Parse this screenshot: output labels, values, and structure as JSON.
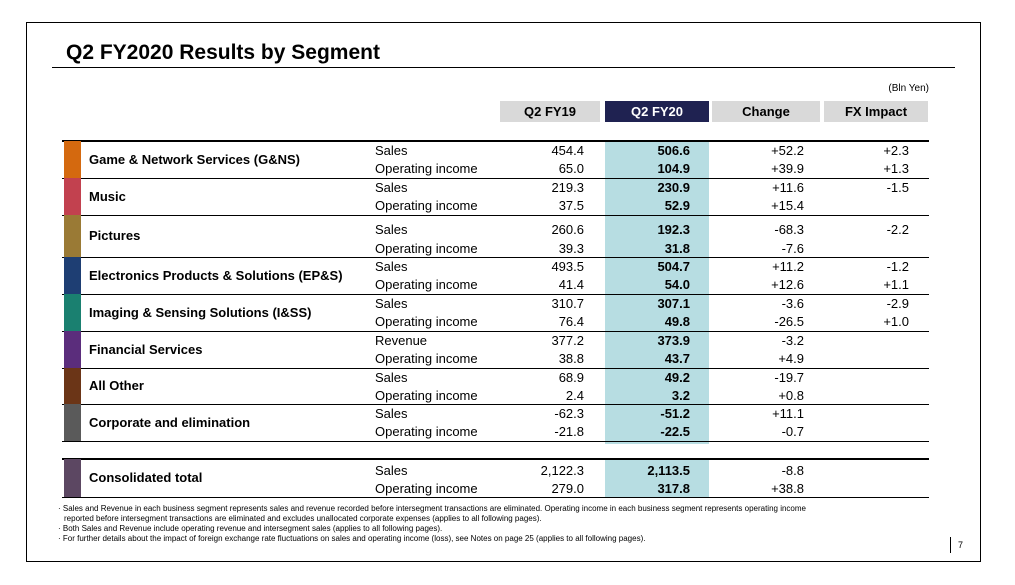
{
  "title": "Q2 FY2020  Results by Segment",
  "unit_note": "(Bln Yen)",
  "columns": [
    "Q2 FY19",
    "Q2 FY20",
    "Change",
    "FX Impact"
  ],
  "colors": {
    "current_header": "#1f2251",
    "current_highlight": "#b7dde2",
    "header_bg": "#d9d9d9",
    "segments": [
      "#d4690f",
      "#c2414f",
      "#9a7a35",
      "#1e3e73",
      "#1a8070",
      "#5b2d7c",
      "#6b3517",
      "#5a5a5a",
      "#5c4762"
    ]
  },
  "segments": [
    {
      "name": "Game & Network Services (G&NS)",
      "rows": [
        {
          "label": "Sales",
          "fy19": "454.4",
          "fy20": "506.6",
          "change": "+52.2",
          "fx": "+2.3"
        },
        {
          "label": "Operating income",
          "fy19": "65.0",
          "fy20": "104.9",
          "change": "+39.9",
          "fx": "+1.3"
        }
      ]
    },
    {
      "name": "Music",
      "rows": [
        {
          "label": "Sales",
          "fy19": "219.3",
          "fy20": "230.9",
          "change": "+11.6",
          "fx": "-1.5"
        },
        {
          "label": "Operating income",
          "fy19": "37.5",
          "fy20": "52.9",
          "change": "+15.4",
          "fx": ""
        }
      ]
    },
    {
      "name": "Pictures",
      "rows": [
        {
          "label": "Sales",
          "fy19": "260.6",
          "fy20": "192.3",
          "change": "-68.3",
          "fx": "-2.2"
        },
        {
          "label": "Operating income",
          "fy19": "39.3",
          "fy20": "31.8",
          "change": "-7.6",
          "fx": ""
        }
      ]
    },
    {
      "name": "Electronics Products & Solutions (EP&S)",
      "rows": [
        {
          "label": "Sales",
          "fy19": "493.5",
          "fy20": "504.7",
          "change": "+11.2",
          "fx": "-1.2"
        },
        {
          "label": "Operating income",
          "fy19": "41.4",
          "fy20": "54.0",
          "change": "+12.6",
          "fx": "+1.1"
        }
      ]
    },
    {
      "name": "Imaging & Sensing Solutions (I&SS)",
      "rows": [
        {
          "label": "Sales",
          "fy19": "310.7",
          "fy20": "307.1",
          "change": "-3.6",
          "fx": "-2.9"
        },
        {
          "label": "Operating income",
          "fy19": "76.4",
          "fy20": "49.8",
          "change": "-26.5",
          "fx": "+1.0"
        }
      ]
    },
    {
      "name": "Financial Services",
      "rows": [
        {
          "label": "Revenue",
          "fy19": "377.2",
          "fy20": "373.9",
          "change": "-3.2",
          "fx": ""
        },
        {
          "label": "Operating income",
          "fy19": "38.8",
          "fy20": "43.7",
          "change": "+4.9",
          "fx": ""
        }
      ]
    },
    {
      "name": "All Other",
      "rows": [
        {
          "label": "Sales",
          "fy19": "68.9",
          "fy20": "49.2",
          "change": "-19.7",
          "fx": ""
        },
        {
          "label": "Operating income",
          "fy19": "2.4",
          "fy20": "3.2",
          "change": "+0.8",
          "fx": ""
        }
      ]
    },
    {
      "name": "Corporate and elimination",
      "rows": [
        {
          "label": "Sales",
          "fy19": "-62.3",
          "fy20": "-51.2",
          "change": "+11.1",
          "fx": ""
        },
        {
          "label": "Operating income",
          "fy19": "-21.8",
          "fy20": "-22.5",
          "change": "-0.7",
          "fx": ""
        }
      ]
    },
    {
      "name": "Consolidated total",
      "rows": [
        {
          "label": "Sales",
          "fy19": "2,122.3",
          "fy20": "2,113.5",
          "change": "-8.8",
          "fx": ""
        },
        {
          "label": "Operating income",
          "fy19": "279.0",
          "fy20": "317.8",
          "change": "+38.8",
          "fx": ""
        }
      ]
    }
  ],
  "notes": [
    "· Sales and Revenue in each business segment represents sales and revenue recorded before intersegment transactions are eliminated. Operating income in each business segment represents operating income",
    "  reported before intersegment transactions are eliminated and excludes unallocated corporate expenses (applies to all following pages).",
    "· Both Sales and Revenue include operating revenue and intersegment sales (applies to all following pages).",
    "· For further details about the impact of foreign exchange rate fluctuations on sales and operating income (loss), see Notes on page 25 (applies to all following pages)."
  ],
  "page_number": "7"
}
